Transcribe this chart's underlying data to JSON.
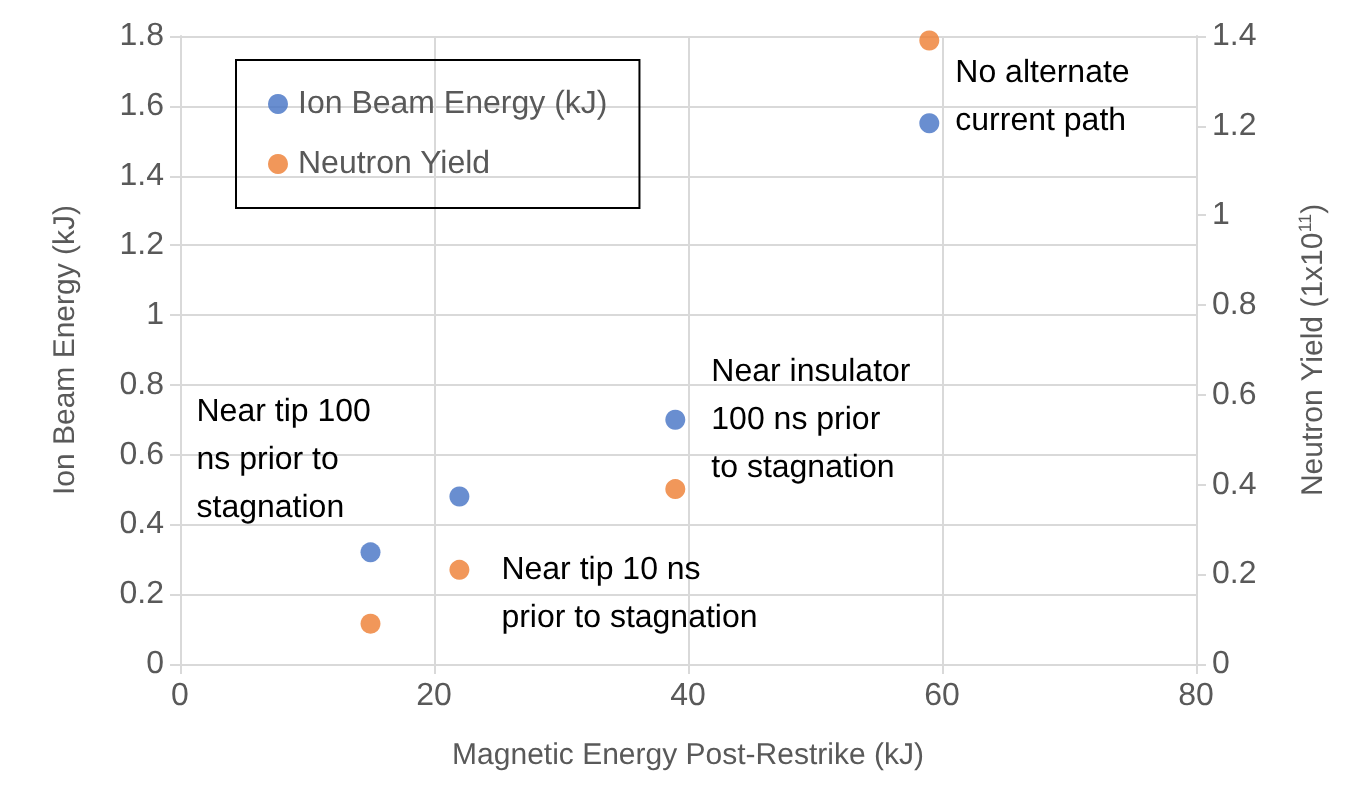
{
  "chart_data": {
    "type": "scatter",
    "xlabel": "Magnetic Energy Post-Restrike (kJ)",
    "ylabel": "Ion Beam Energy (kJ)",
    "y2label": "Neutron Yield (1x10$^{11}$)",
    "x": [
      15,
      22,
      39,
      59
    ],
    "series": [
      {
        "name": "Ion Beam Energy (kJ)",
        "color": "#4472c4",
        "values": [
          0.32,
          0.48,
          0.7,
          1.55
        ]
      },
      {
        "name": "Neutron Yield",
        "color": "#ed7d31",
        "values": [
          0.09,
          0.21,
          0.39,
          1.39
        ],
        "axis": "y2"
      }
    ],
    "xlim": [
      0,
      80
    ],
    "xticks": [
      0,
      20,
      40,
      60,
      80
    ],
    "ylim": [
      0,
      1.8
    ],
    "yticks": [
      0,
      0.2,
      0.4,
      0.6,
      0.8,
      1,
      1.2,
      1.4,
      1.6,
      1.8
    ],
    "y2lim": [
      0,
      1.4
    ],
    "y2ticks": [
      0,
      0.2,
      0.4,
      0.6,
      0.8,
      1,
      1.2,
      1.4
    ],
    "annotations": [
      {
        "text": "Near tip 100\nns prior to\nstagnation",
        "x": 15,
        "y": 0.32
      },
      {
        "text": "Near tip 10 ns\nprior to stagnation",
        "x": 22,
        "y": 0.27
      },
      {
        "text": "Near insulator\n100 ns prior\nto stagnation",
        "x": 39,
        "y": 0.7
      },
      {
        "text": "No alternate\ncurrent path",
        "x": 59,
        "y": 1.55
      }
    ],
    "grid": true,
    "legend": "top left",
    "marker": "circle"
  }
}
